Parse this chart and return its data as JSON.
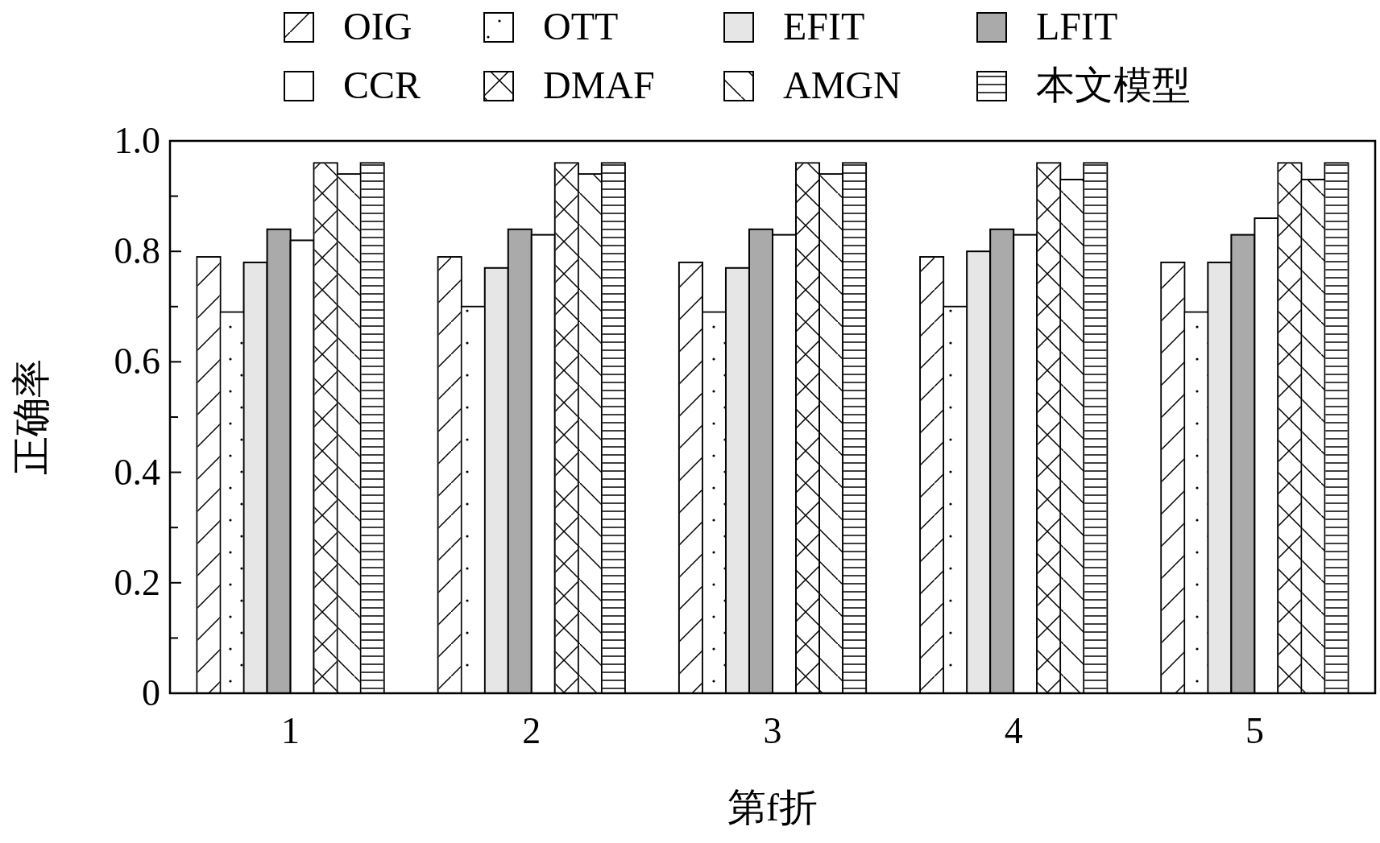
{
  "chart_data": {
    "type": "bar",
    "xlabel": "第f折",
    "ylabel": "正确率",
    "categories": [
      "1",
      "2",
      "3",
      "4",
      "5"
    ],
    "ylim": [
      0,
      1.0
    ],
    "yticks": [
      0,
      {
        "value": 0.1,
        "label": null
      },
      0.2,
      {
        "value": 0.3,
        "label": null
      },
      0.4,
      {
        "value": 0.5,
        "label": null
      },
      0.6,
      {
        "value": 0.7,
        "label": null
      },
      0.8,
      {
        "value": 0.9,
        "label": null
      },
      {
        "value": 1.0,
        "label": "1.0"
      }
    ],
    "grid": false,
    "legend": "top",
    "series": [
      {
        "name": "OIG",
        "color": "#ffffff",
        "values": [
          0.79,
          0.79,
          0.78,
          0.79,
          0.78
        ]
      },
      {
        "name": "OTT",
        "color": "#ffffff",
        "values": [
          0.69,
          0.7,
          0.69,
          0.7,
          0.69
        ]
      },
      {
        "name": "EFIT",
        "color": "#e6e6e6",
        "values": [
          0.78,
          0.77,
          0.77,
          0.8,
          0.78
        ]
      },
      {
        "name": "LFIT",
        "color": "#aaaaaa",
        "values": [
          0.84,
          0.84,
          0.84,
          0.84,
          0.83
        ]
      },
      {
        "name": "CCR",
        "color": "#ffffff",
        "values": [
          0.82,
          0.83,
          0.83,
          0.83,
          0.86
        ]
      },
      {
        "name": "DMAF",
        "color": "#ffffff",
        "values": [
          0.96,
          0.96,
          0.96,
          0.96,
          0.96
        ]
      },
      {
        "name": "AMGN",
        "color": "#ffffff",
        "values": [
          0.94,
          0.94,
          0.94,
          0.93,
          0.93
        ]
      },
      {
        "name": "本文模型",
        "color": "#ffffff",
        "values": [
          0.96,
          0.96,
          0.96,
          0.96,
          0.96
        ]
      }
    ]
  }
}
